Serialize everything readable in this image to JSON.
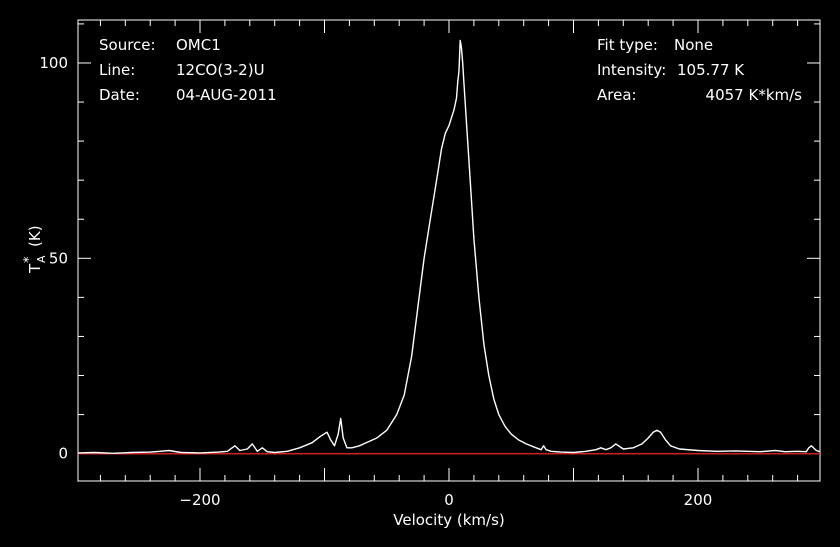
{
  "colors": {
    "background": "#000000",
    "axes": "#ffffff",
    "spectrum": "#ffffff",
    "baseline": "#c82020"
  },
  "info": {
    "source_label": "Source:",
    "source_value": "OMC1",
    "line_label": "Line:",
    "line_value": "12CO(3-2)U",
    "date_label": "Date:",
    "date_value": "04-AUG-2011",
    "fit_label": "Fit type:",
    "fit_value": "None",
    "intensity_label": "Intensity:",
    "intensity_value": "105.77 K",
    "area_label": "Area:",
    "area_value": "4057 K*km/s"
  },
  "chart_data": {
    "type": "line",
    "xlabel": "Velocity (km/s)",
    "ylabel_main": "T",
    "ylabel_sub": "A",
    "ylabel_sup": "*",
    "ylabel_unit": "(K)",
    "xlim": [
      -298,
      298
    ],
    "ylim": [
      -7,
      111
    ],
    "x_ticks": [
      -200,
      0,
      200
    ],
    "x_tick_labels": [
      "−200",
      "0",
      "200"
    ],
    "y_ticks": [
      0,
      50,
      100
    ],
    "y_tick_labels": [
      "0",
      "50",
      "100"
    ],
    "baseline_y": 0,
    "series": [
      {
        "x": [
          -298,
          -285,
          -270,
          -255,
          -240,
          -232,
          -225,
          -215,
          -200,
          -185,
          -178,
          -172,
          -168,
          -162,
          -158,
          -154,
          -150,
          -146,
          -140,
          -130,
          -120,
          -110,
          -103,
          -98,
          -95,
          -92,
          -89,
          -87,
          -85,
          -82,
          -78,
          -72,
          -65,
          -58,
          -50,
          -42,
          -36,
          -30,
          -24,
          -20,
          -15,
          -10,
          -6,
          -3,
          0,
          2,
          4,
          6,
          7,
          8,
          9,
          10,
          11,
          12,
          14,
          17,
          20,
          24,
          28,
          32,
          36,
          40,
          45,
          50,
          56,
          62,
          70,
          74,
          76,
          78,
          82,
          90,
          100,
          110,
          118,
          122,
          126,
          130,
          134,
          140,
          148,
          155,
          160,
          164,
          167,
          170,
          174,
          178,
          185,
          200,
          215,
          230,
          250,
          262,
          270,
          280,
          287,
          289,
          291,
          295,
          298
        ],
        "y": [
          0.2,
          0.3,
          0.1,
          0.3,
          0.4,
          0.6,
          0.8,
          0.3,
          0.2,
          0.4,
          0.6,
          2.0,
          0.8,
          1.2,
          2.5,
          0.6,
          1.5,
          0.5,
          0.3,
          0.6,
          1.5,
          2.8,
          4.5,
          5.5,
          3.5,
          2.0,
          5.0,
          9.0,
          4.0,
          1.5,
          1.5,
          2.0,
          3.0,
          4.0,
          6.0,
          10,
          15,
          25,
          40,
          50,
          60,
          70,
          78,
          82,
          84,
          86,
          88,
          91,
          95,
          98,
          105.77,
          104,
          100,
          95,
          85,
          70,
          55,
          40,
          28,
          20,
          14,
          10,
          7,
          5,
          3.5,
          2.5,
          1.5,
          1.0,
          2.0,
          1.0,
          0.6,
          0.4,
          0.3,
          0.6,
          1.0,
          1.5,
          1.0,
          1.5,
          2.5,
          1.2,
          1.5,
          2.5,
          4.0,
          5.5,
          6.0,
          5.5,
          3.5,
          2.0,
          1.2,
          0.8,
          0.6,
          0.7,
          0.5,
          0.8,
          0.5,
          0.6,
          0.5,
          1.5,
          2.0,
          0.8,
          0.5
        ]
      }
    ]
  }
}
